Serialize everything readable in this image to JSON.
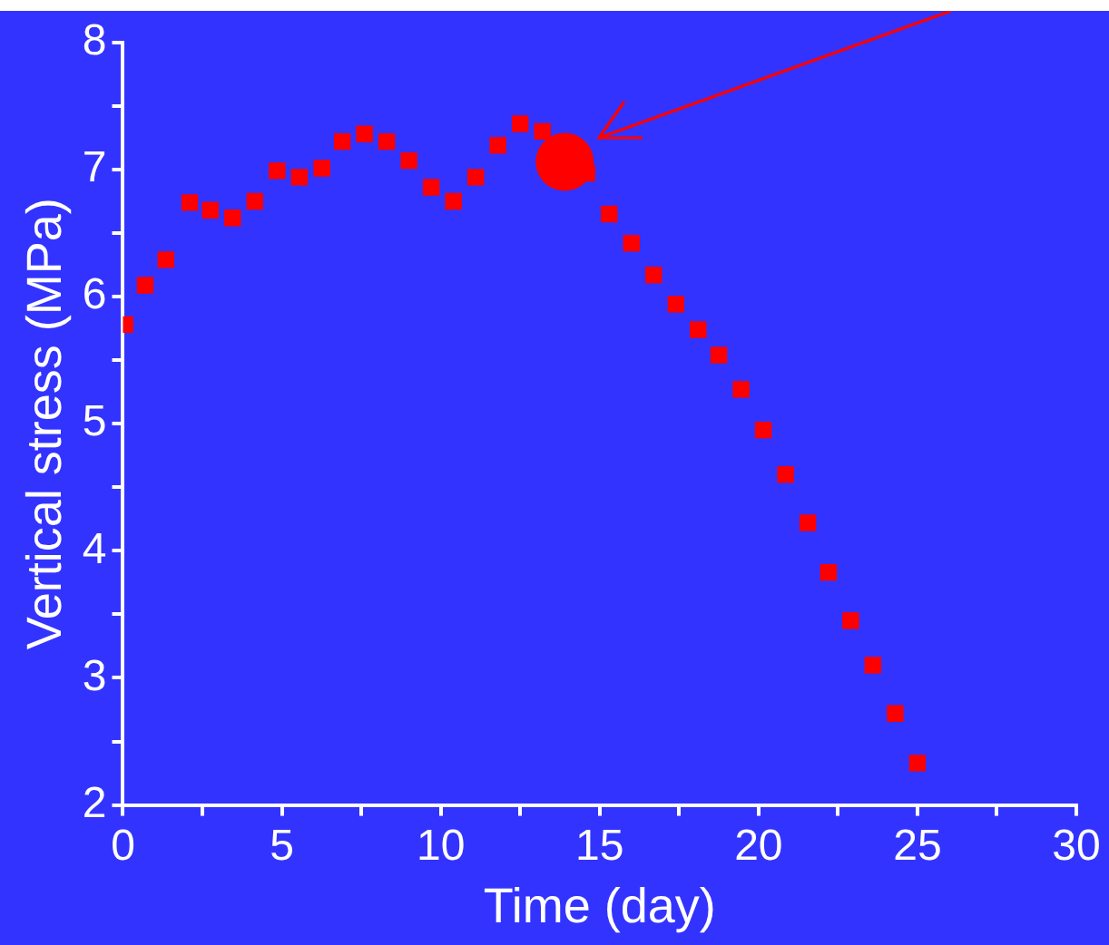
{
  "chart_data": {
    "type": "scatter",
    "xlabel": "Time (day)",
    "ylabel": "Vertical stress (MPa)",
    "xlim": [
      0,
      30
    ],
    "xticks": [
      0,
      {
        "value": 2.5,
        "label": null
      },
      5,
      {
        "value": 7.5,
        "label": null
      },
      10,
      {
        "value": 12.5,
        "label": null
      },
      15,
      {
        "value": 17.5,
        "label": null
      },
      20,
      {
        "value": 22.5,
        "label": null
      },
      25,
      {
        "value": 27.5,
        "label": null
      },
      30
    ],
    "ylim": [
      2,
      8
    ],
    "yticks": [
      2,
      {
        "value": 2.5,
        "label": null
      },
      3,
      {
        "value": 3.5,
        "label": null
      },
      4,
      {
        "value": 4.5,
        "label": null
      },
      5,
      {
        "value": 5.5,
        "label": null
      },
      6,
      {
        "value": 6.5,
        "label": null
      },
      7,
      {
        "value": 7.5,
        "label": null
      },
      8
    ],
    "grid": false,
    "legend": false,
    "series": [
      {
        "color": "#ff0000",
        "marker": "square",
        "x": [
          0.06,
          0.7,
          1.35,
          2.1,
          2.75,
          3.45,
          4.15,
          4.85,
          5.55,
          6.26,
          6.9,
          7.6,
          8.3,
          9.0,
          9.7,
          10.4,
          11.1,
          11.8,
          12.5,
          13.2,
          14.6,
          15.3,
          16.0,
          16.7,
          17.4,
          18.1,
          18.75,
          19.45,
          20.15,
          20.85,
          21.55,
          22.2,
          22.9,
          23.6,
          24.3,
          25.0
        ],
        "values": [
          5.78,
          6.09,
          6.29,
          6.74,
          6.68,
          6.62,
          6.75,
          6.99,
          6.94,
          7.01,
          7.22,
          7.28,
          7.22,
          7.07,
          6.86,
          6.75,
          6.94,
          7.19,
          7.36,
          7.3,
          6.97,
          6.65,
          6.42,
          6.17,
          5.94,
          5.74,
          5.54,
          5.27,
          4.95,
          4.6,
          4.22,
          3.83,
          3.45,
          3.1,
          2.72,
          2.33
        ]
      },
      {
        "color": "#ff0000",
        "marker": "circle",
        "x": [
          13.9
        ],
        "values": [
          7.06
        ]
      }
    ]
  }
}
